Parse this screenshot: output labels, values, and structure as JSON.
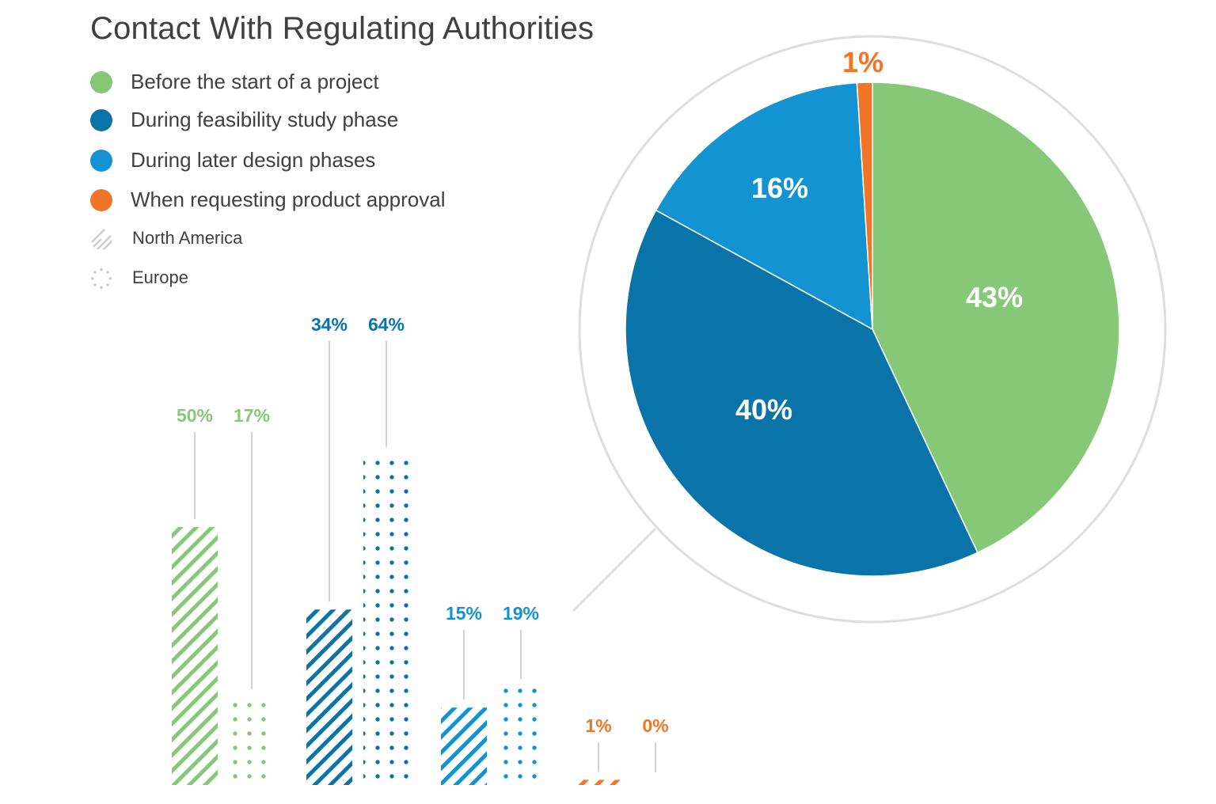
{
  "chart_data": {
    "title": "Contact With Regulating Authorities",
    "legend": {
      "categories": [
        {
          "label": "Before the start of a project",
          "color": "#87c878"
        },
        {
          "label": "During feasibility study phase",
          "color": "#0a74a8"
        },
        {
          "label": "During later design phases",
          "color": "#1493d2"
        },
        {
          "label": "When requesting product approval",
          "color": "#f07528"
        }
      ],
      "regions": [
        {
          "label": "North America",
          "pattern": "hatch"
        },
        {
          "label": "Europe",
          "pattern": "dots"
        }
      ]
    },
    "bar_chart": {
      "type": "bar",
      "categories": [
        "Before the start of a project",
        "During feasibility study phase",
        "During later design phases",
        "When requesting product approval"
      ],
      "series": [
        {
          "name": "North America",
          "values": [
            50,
            34,
            15,
            1
          ]
        },
        {
          "name": "Europe",
          "values": [
            17,
            64,
            19,
            0
          ]
        }
      ],
      "labels": [
        [
          "50%",
          "17%"
        ],
        [
          "34%",
          "64%"
        ],
        [
          "15%",
          "19%"
        ],
        [
          "1%",
          "0%"
        ]
      ]
    },
    "pie_chart": {
      "type": "pie",
      "slices": [
        {
          "category": "Before the start of a project",
          "value": 43,
          "label": "43%"
        },
        {
          "category": "During feasibility study phase",
          "value": 40,
          "label": "40%"
        },
        {
          "category": "During later design phases",
          "value": 16,
          "label": "16%"
        },
        {
          "category": "When requesting product approval",
          "value": 1,
          "label": "1%"
        }
      ]
    }
  }
}
